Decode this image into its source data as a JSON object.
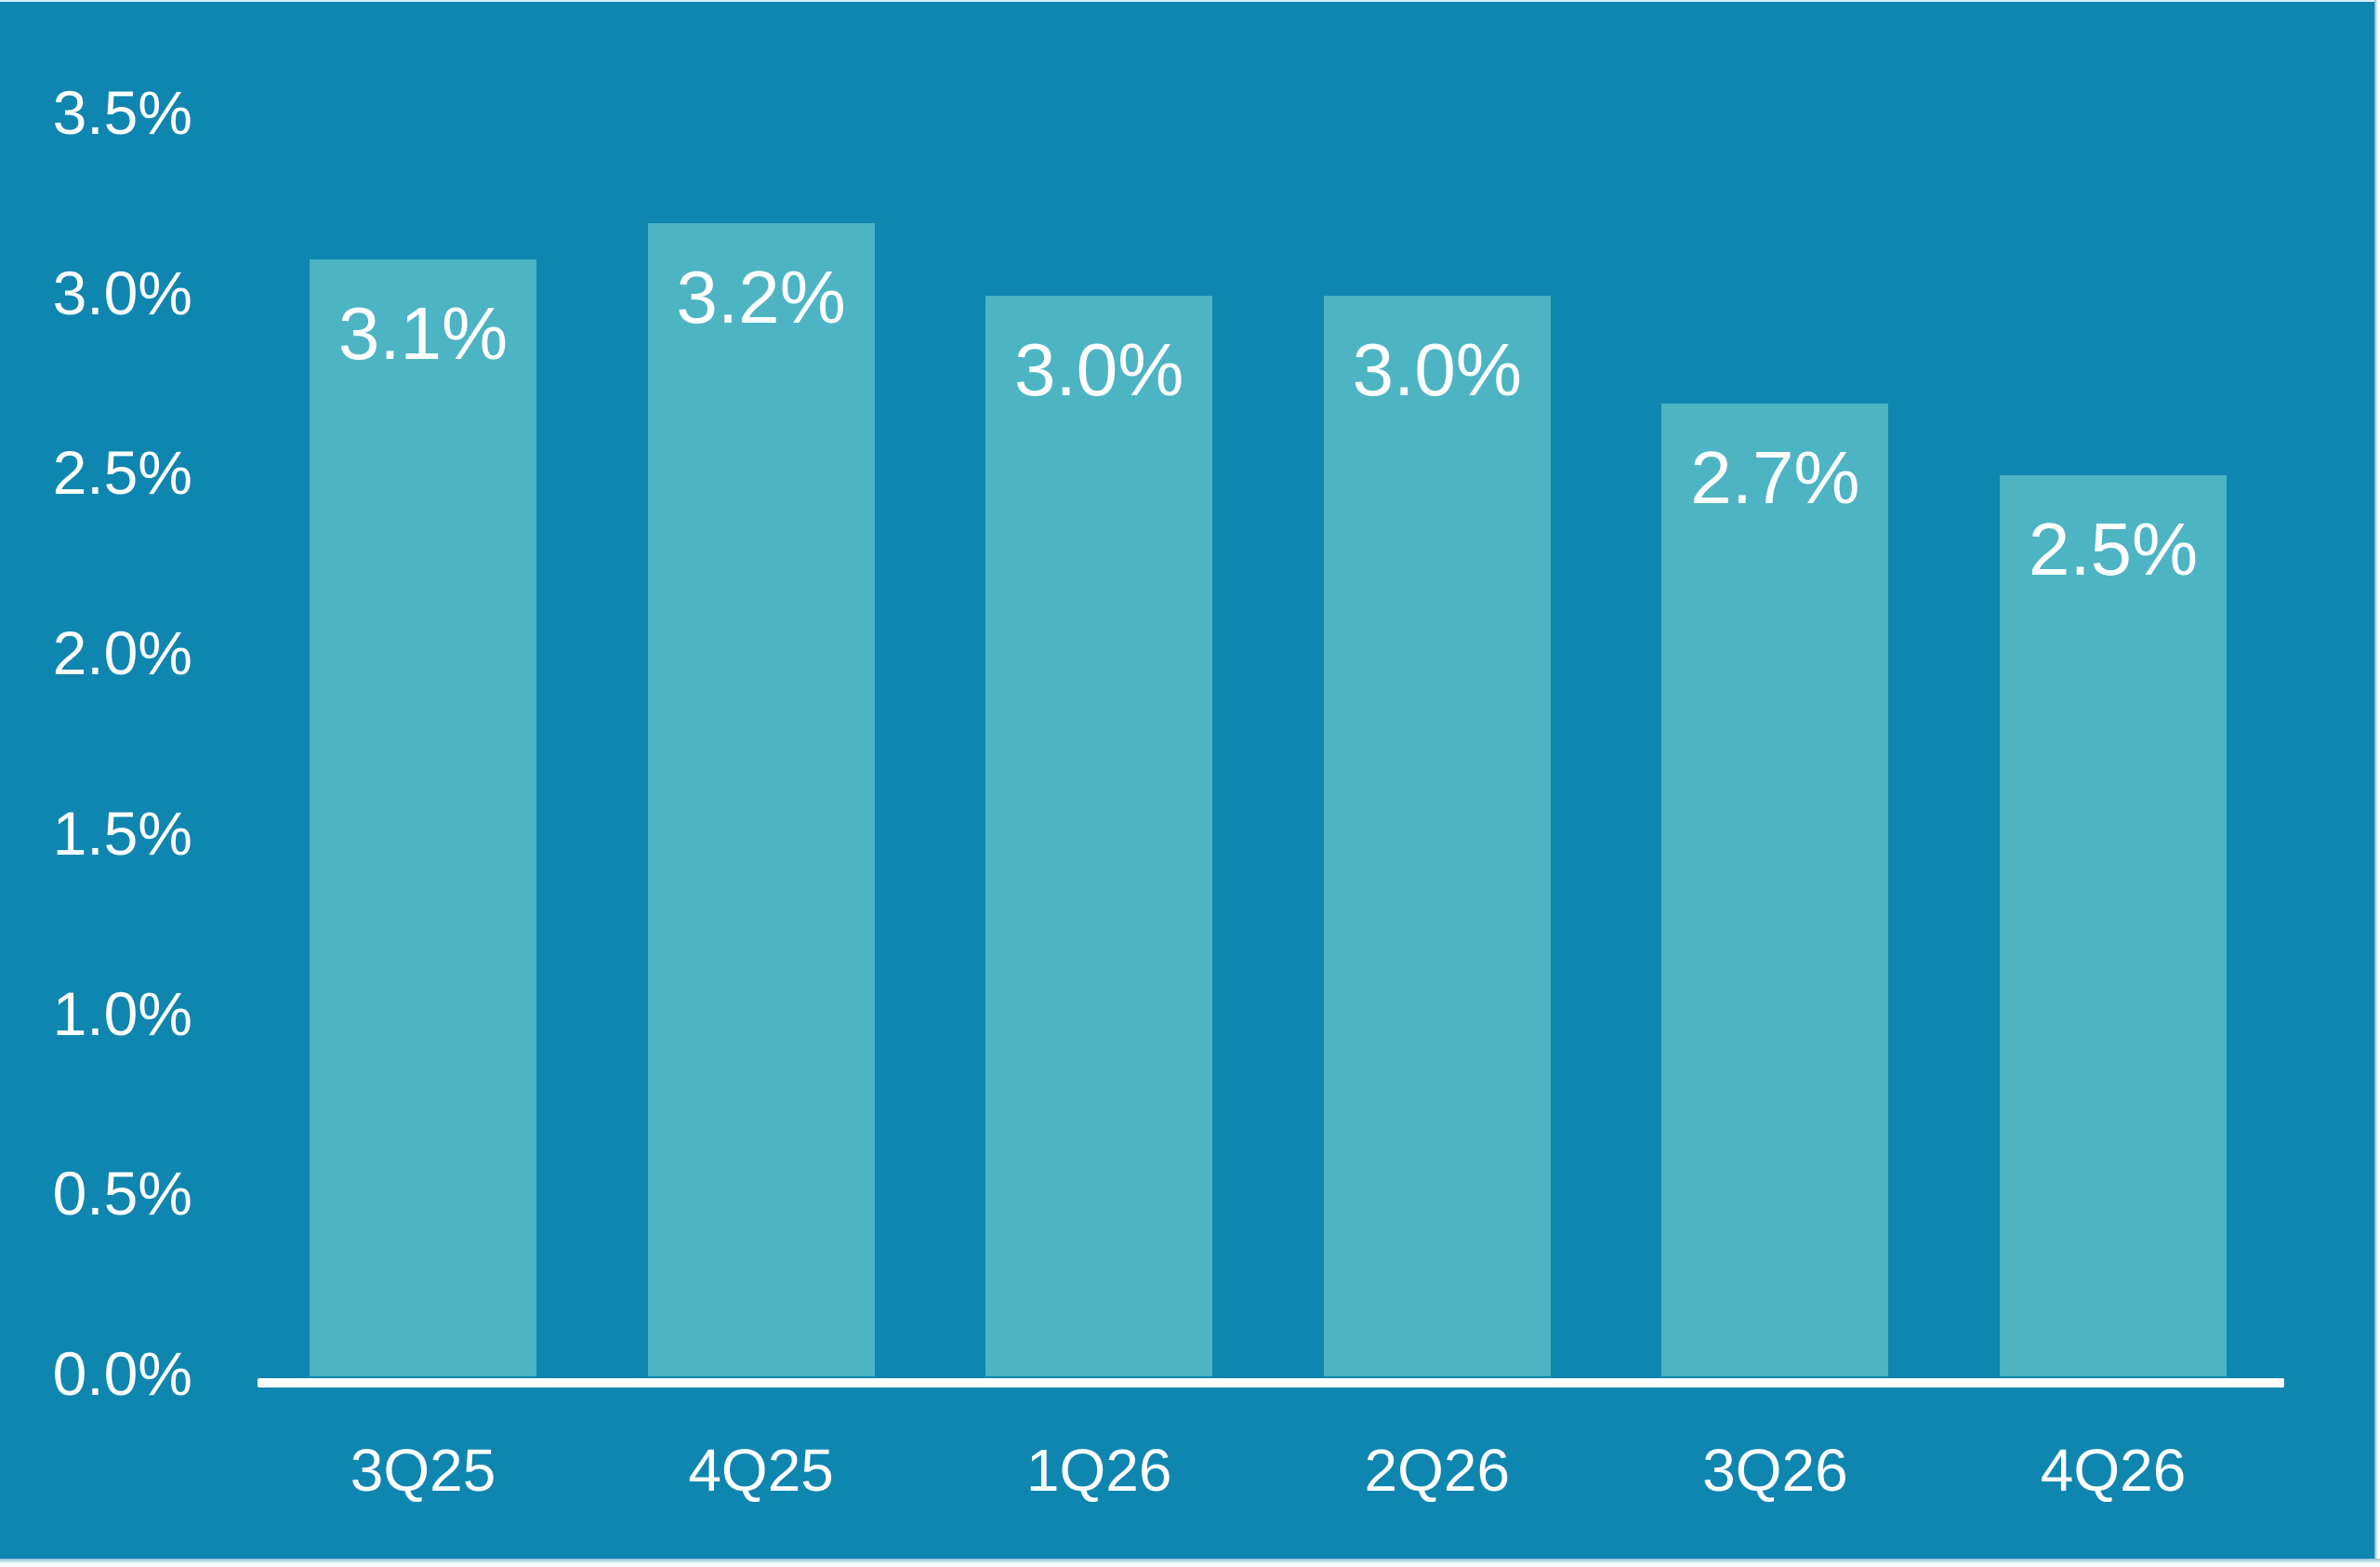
{
  "chart_data": {
    "type": "bar",
    "title": "",
    "xlabel": "",
    "ylabel": "",
    "categories": [
      "3Q25",
      "4Q25",
      "1Q26",
      "2Q26",
      "3Q26",
      "4Q26"
    ],
    "values": [
      3.1,
      3.2,
      3.0,
      3.0,
      2.7,
      2.5
    ],
    "value_labels": [
      "3.1%",
      "3.2%",
      "3.0%",
      "3.0%",
      "2.7%",
      "2.5%"
    ],
    "y_tick_labels": [
      "3.5%",
      "3.0%",
      "2.5%",
      "2.0%",
      "1.5%",
      "1.0%",
      "0.5%",
      "0.0%"
    ],
    "y_tick_values": [
      3.5,
      3.0,
      2.5,
      2.0,
      1.5,
      1.0,
      0.5,
      0.0
    ],
    "ylim": [
      0,
      3.5
    ],
    "grid": false,
    "legend": "none",
    "data_labels": "inside-top",
    "colors": {
      "background": "#0f86b0",
      "bar": "#4db4c4",
      "text": "#ffffff",
      "axis_line": "#ffffff"
    }
  }
}
